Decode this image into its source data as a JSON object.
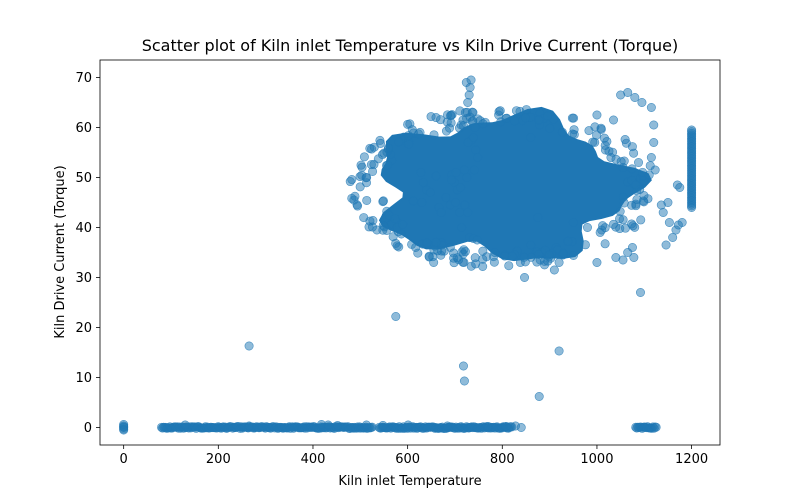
{
  "chart_data": {
    "type": "scatter",
    "title": "Scatter plot of Kiln inlet Temperature vs Kiln Drive Current (Torque)",
    "xlabel": "Kiln inlet Temperature",
    "ylabel": "Kiln Drive Current (Torque)",
    "xlim": [
      -50,
      1260
    ],
    "ylim": [
      -3.5,
      73.5
    ],
    "xticks": [
      0,
      200,
      400,
      600,
      800,
      1000,
      1200
    ],
    "yticks": [
      0,
      10,
      20,
      30,
      40,
      50,
      60,
      70
    ],
    "grid": false,
    "marker_color": "#1f77b4",
    "marker_alpha": 0.5,
    "dense_regions": [
      {
        "x_range": [
          460,
          1140
        ],
        "y_range": [
          31,
          67
        ],
        "center": [
          760,
          48
        ],
        "description": "dense main cluster"
      }
    ],
    "band_segments": [
      {
        "x_range": [
          80,
          525
        ],
        "y": 0
      },
      {
        "x_range": [
          540,
          820
        ],
        "y": 0
      },
      {
        "x_range": [
          1082,
          1125
        ],
        "y": 0
      }
    ],
    "vertical_segments": [
      {
        "x": 1200,
        "y_range": [
          44,
          59.5
        ]
      }
    ],
    "points": [
      [
        0,
        0.0
      ],
      [
        0,
        0.3
      ],
      [
        0,
        -0.3
      ],
      [
        0,
        0.6
      ],
      [
        0,
        -0.5
      ],
      [
        0,
        0.1
      ],
      [
        265,
        16.3
      ],
      [
        575,
        22.2
      ],
      [
        920,
        15.3
      ],
      [
        878,
        6.2
      ],
      [
        718,
        12.3
      ],
      [
        720,
        9.3
      ],
      [
        655,
        33.0
      ],
      [
        1092,
        27.0
      ],
      [
        847,
        30.0
      ],
      [
        612,
        45.3
      ],
      [
        628,
        51.0
      ],
      [
        640,
        47.5
      ],
      [
        633,
        49.0
      ],
      [
        630,
        45.0
      ],
      [
        648,
        47.0
      ],
      [
        660,
        50.3
      ],
      [
        666,
        44.0
      ],
      [
        671,
        43.0
      ],
      [
        681,
        46.0
      ],
      [
        690,
        44.5
      ],
      [
        693,
        50.5
      ],
      [
        699,
        49.0
      ],
      [
        705,
        47.5
      ],
      [
        710,
        43.0
      ],
      [
        714,
        40.0
      ],
      [
        721,
        44.5
      ],
      [
        727,
        43.0
      ],
      [
        731,
        38.0
      ],
      [
        739,
        37.8
      ],
      [
        747,
        37.5
      ],
      [
        712,
        48.0
      ],
      [
        701,
        45.0
      ],
      [
        713,
        60.5
      ],
      [
        717,
        61.5
      ],
      [
        722,
        63.0
      ],
      [
        727,
        65.0
      ],
      [
        730,
        66.5
      ],
      [
        732,
        68.0
      ],
      [
        724,
        69.0
      ],
      [
        734,
        69.5
      ],
      [
        738,
        63.0
      ],
      [
        742,
        60.0
      ],
      [
        735,
        57.5
      ],
      [
        728,
        57.0
      ],
      [
        739,
        58.0
      ],
      [
        744,
        55.5
      ],
      [
        748,
        54.0
      ],
      [
        741,
        51.5
      ],
      [
        720,
        51.5
      ],
      [
        725,
        50.0
      ],
      [
        702,
        51.0
      ],
      [
        693,
        49.5
      ],
      [
        875,
        42.0
      ],
      [
        860,
        36.5
      ],
      [
        880,
        33.5
      ],
      [
        910,
        31.5
      ],
      [
        1040,
        34.0
      ],
      [
        1055,
        33.5
      ],
      [
        1065,
        35.0
      ],
      [
        1075,
        36.0
      ],
      [
        1078,
        34.0
      ],
      [
        1000,
        33.0
      ],
      [
        920,
        33.0
      ],
      [
        860,
        58.0
      ],
      [
        1000,
        62.5
      ],
      [
        1035,
        61.5
      ],
      [
        1050,
        66.5
      ],
      [
        1065,
        67.0
      ],
      [
        1080,
        66.0
      ],
      [
        1095,
        65.0
      ],
      [
        1115,
        64.0
      ],
      [
        1120,
        57.0
      ],
      [
        1120,
        60.5
      ],
      [
        1115,
        54.0
      ],
      [
        1123,
        51.5
      ],
      [
        1140,
        43.0
      ],
      [
        1150,
        45.0
      ],
      [
        1153,
        41.0
      ],
      [
        1160,
        38.0
      ],
      [
        1167,
        39.5
      ],
      [
        1170,
        48.5
      ],
      [
        1175,
        48.0
      ],
      [
        1180,
        41.0
      ],
      [
        1172,
        40.5
      ],
      [
        1146,
        36.5
      ],
      [
        1136,
        44.5
      ],
      [
        980,
        40.0
      ],
      [
        950,
        41.0
      ],
      [
        1010,
        39.5
      ],
      [
        130,
        0.5
      ],
      [
        265,
        0.3
      ],
      [
        418,
        0.6
      ],
      [
        432,
        0.5
      ],
      [
        452,
        0.4
      ],
      [
        513,
        0.5
      ],
      [
        548,
        0.4
      ],
      [
        601,
        0.5
      ],
      [
        684,
        0.3
      ],
      [
        770,
        0.2
      ],
      [
        808,
        0.2
      ],
      [
        828,
        0.3
      ],
      [
        840,
        0.0
      ]
    ]
  }
}
